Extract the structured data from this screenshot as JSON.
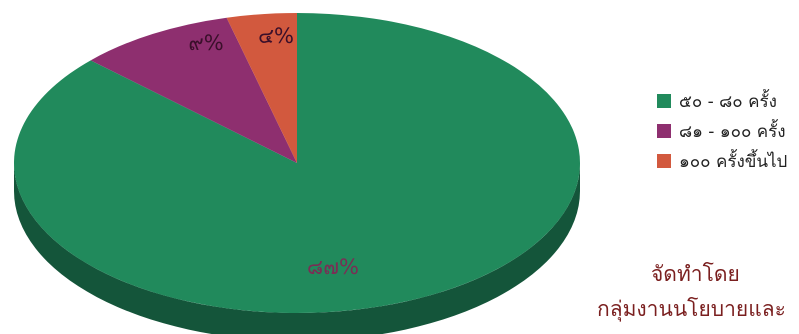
{
  "chart_data": {
    "type": "pie",
    "categories": [
      "๕๐ - ๘๐ ครั้ง",
      "๘๑ - ๑๐๐ ครั้ง",
      "๑๐๐ ครั้งขึ้นไป"
    ],
    "values": [
      87,
      9,
      4
    ],
    "value_labels": [
      "๘๗%",
      "๙%",
      "๔%"
    ],
    "colors": [
      "#218a5c",
      "#8e2f6f",
      "#d2593e"
    ],
    "side_colors": [
      "#14553a",
      "#5e1c49",
      "#8f3a27"
    ],
    "label_colors": [
      "#7a2e55",
      "#3a0f2a",
      "#3a0f2a"
    ],
    "legend_position": "right"
  },
  "credit": {
    "heading": "จัดทำโดย",
    "line": "กลุ่มงานนโยบายและ"
  }
}
